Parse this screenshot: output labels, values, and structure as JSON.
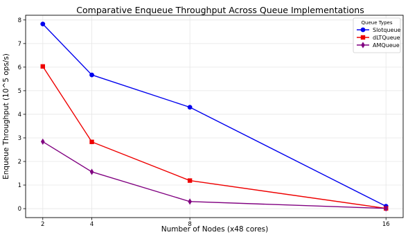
{
  "chart_data": {
    "type": "line",
    "title": "Comparative Enqueue Throughput Across Queue Implementations",
    "xlabel": "Number of Nodes (x48 cores)",
    "ylabel": "Enqueue Throughput (10^5 ops/s)",
    "x": [
      2,
      4,
      8,
      16
    ],
    "x_ticks": [
      "2",
      "4",
      "8",
      "16"
    ],
    "xlim": [
      1.3,
      16.7
    ],
    "ylim": [
      -0.38,
      8.2
    ],
    "y_ticks": [
      "0",
      "1",
      "2",
      "3",
      "4",
      "5",
      "6",
      "7",
      "8"
    ],
    "grid": true,
    "legend": {
      "title": "Queue Types",
      "position": "top-right"
    },
    "series": [
      {
        "name": "Slotqueue",
        "values": [
          7.83,
          5.67,
          4.3,
          0.1
        ],
        "color": "#0000ee",
        "marker": "circle"
      },
      {
        "name": "dLTQueue",
        "values": [
          6.03,
          2.83,
          1.19,
          0.01
        ],
        "color": "#ee0000",
        "marker": "square"
      },
      {
        "name": "AMQueue",
        "values": [
          2.84,
          1.56,
          0.3,
          0.01
        ],
        "color": "#800080",
        "marker": "diamond"
      }
    ]
  }
}
